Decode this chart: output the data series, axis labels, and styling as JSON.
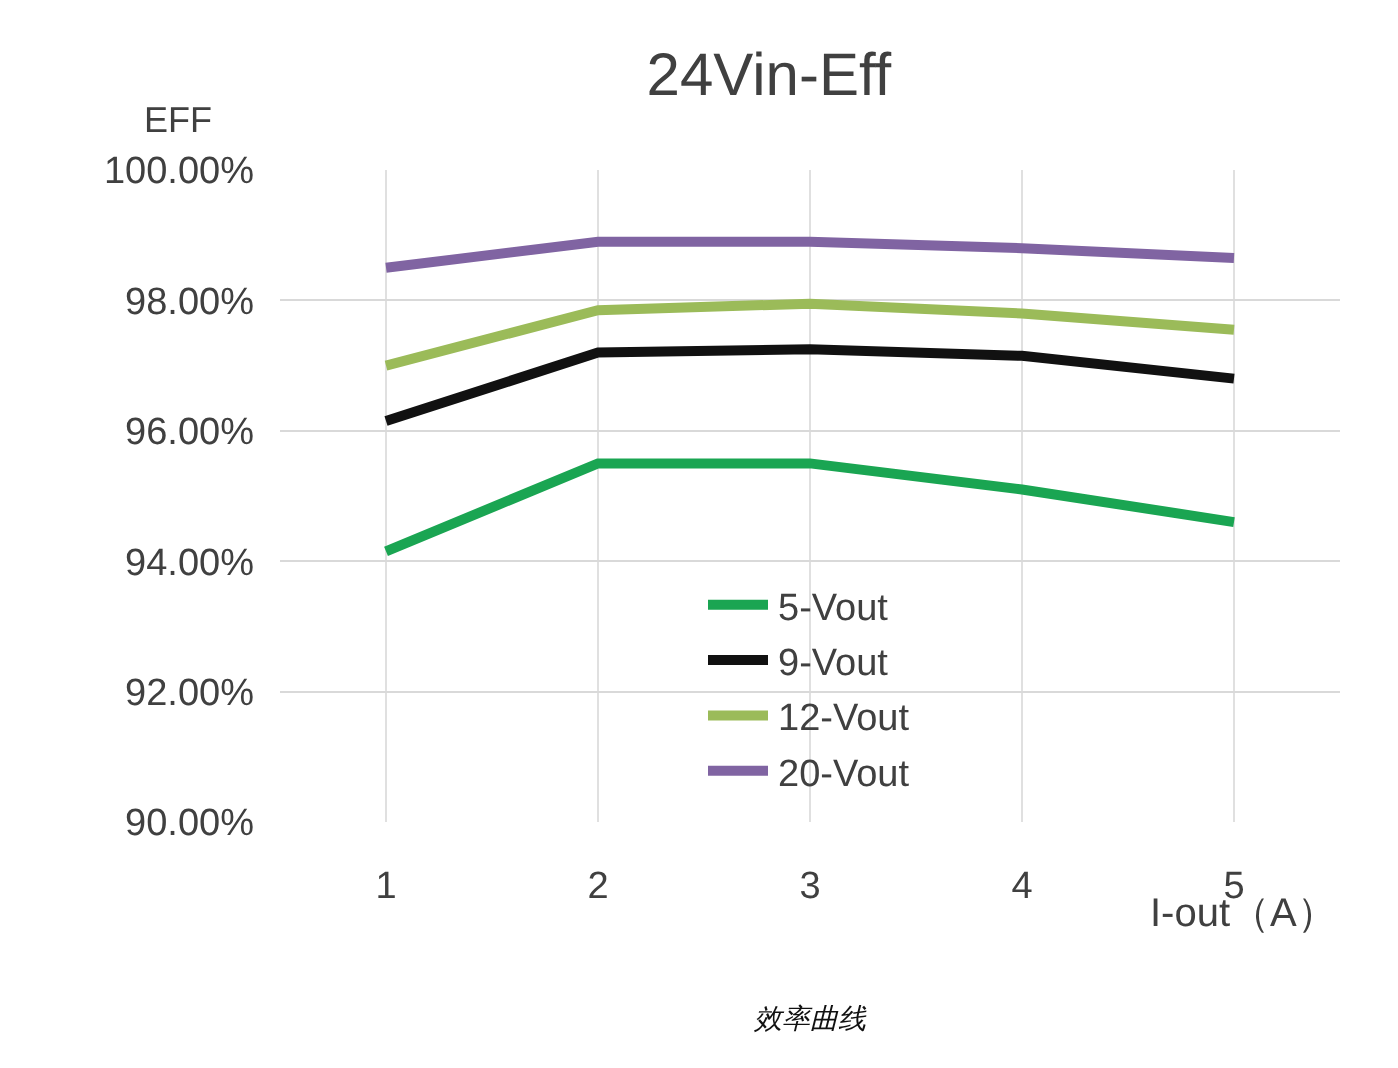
{
  "chart_data": {
    "type": "line",
    "title": "24Vin-Eff",
    "ylabel": "EFF",
    "xlabel": "I-out（A）",
    "categories": [
      "1",
      "2",
      "3",
      "4",
      "5"
    ],
    "series": [
      {
        "name": "5-Vout",
        "color": "#1aa552",
        "values": [
          94.15,
          95.5,
          95.5,
          95.1,
          94.6
        ]
      },
      {
        "name": "9-Vout",
        "color": "#111111",
        "values": [
          96.15,
          97.2,
          97.25,
          97.15,
          96.8
        ]
      },
      {
        "name": "12-Vout",
        "color": "#9bbb59",
        "values": [
          97.0,
          97.85,
          97.95,
          97.8,
          97.55
        ]
      },
      {
        "name": "20-Vout",
        "color": "#8064a2",
        "values": [
          98.5,
          98.9,
          98.9,
          98.8,
          98.65
        ]
      }
    ],
    "ylim": [
      90,
      100
    ],
    "yticks": [
      {
        "value": 90,
        "label": "90.00%"
      },
      {
        "value": 92,
        "label": "92.00%"
      },
      {
        "value": 94,
        "label": "94.00%"
      },
      {
        "value": 96,
        "label": "96.00%"
      },
      {
        "value": 98,
        "label": "98.00%"
      },
      {
        "value": 100,
        "label": "100.00%"
      }
    ],
    "grid": true,
    "legend": "bottom",
    "marker": "none",
    "line_style": "solid",
    "annotations": [
      "效率曲线"
    ]
  }
}
